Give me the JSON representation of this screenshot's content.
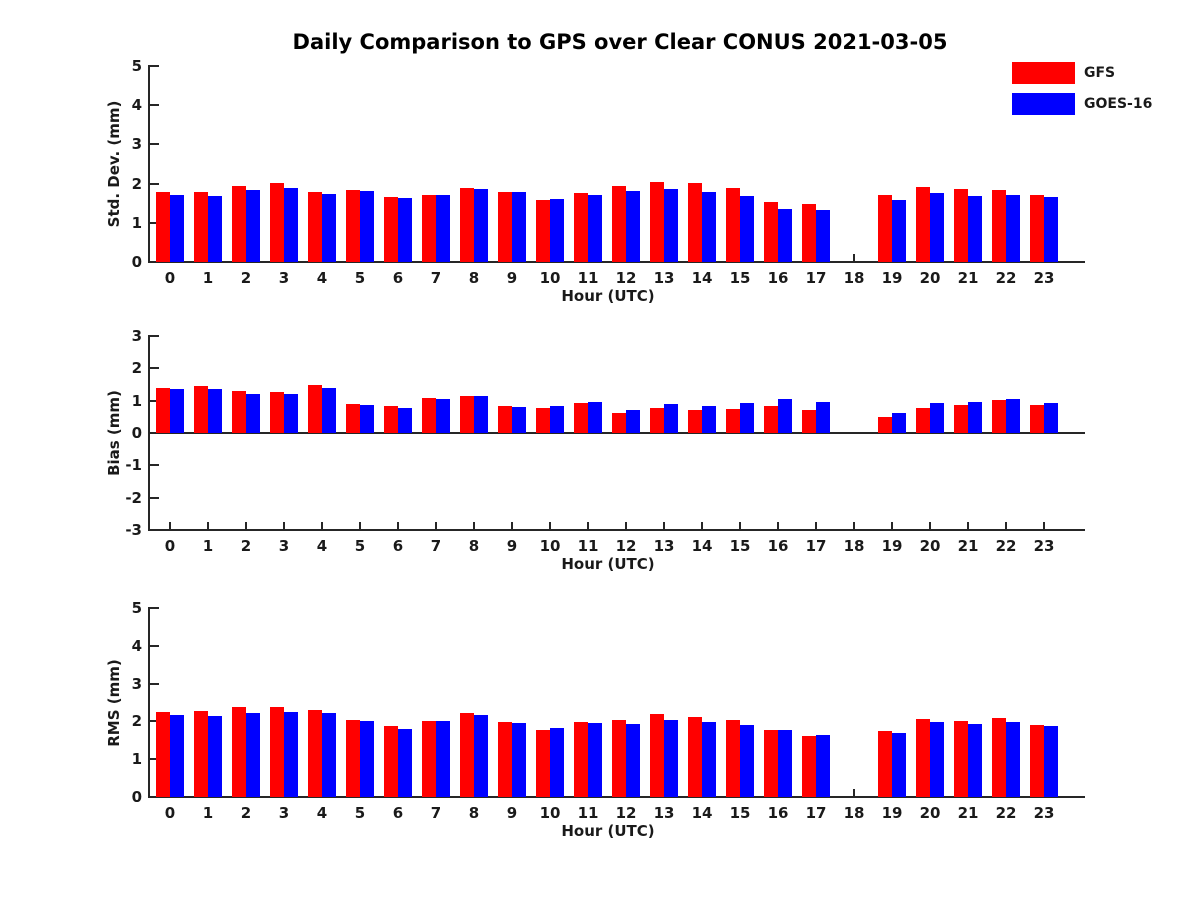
{
  "title": "Daily Comparison to GPS over Clear CONUS 2021-03-05",
  "colors": {
    "gfs": "#ff0000",
    "goes16": "#0000ff",
    "axis": "#262626",
    "text": "#1a1a1a"
  },
  "legend": {
    "position": "top-right",
    "items": [
      {
        "label": "GFS",
        "color": "#ff0000"
      },
      {
        "label": "GOES-16",
        "color": "#0000ff"
      }
    ]
  },
  "chart_data": [
    {
      "type": "bar",
      "title": "",
      "ylabel": "Std. Dev. (mm)",
      "xlabel": "Hour (UTC)",
      "ylim": [
        0,
        5
      ],
      "yticks": [
        0,
        1,
        2,
        3,
        4,
        5
      ],
      "grid": false,
      "categories": [
        "0",
        "1",
        "2",
        "3",
        "4",
        "5",
        "6",
        "7",
        "8",
        "9",
        "10",
        "11",
        "12",
        "13",
        "14",
        "15",
        "16",
        "17",
        "18",
        "19",
        "20",
        "21",
        "22",
        "23"
      ],
      "series": [
        {
          "name": "GFS",
          "color": "#ff0000",
          "values": [
            1.78,
            1.78,
            1.95,
            2.02,
            1.78,
            1.84,
            1.66,
            1.71,
            1.88,
            1.78,
            1.57,
            1.76,
            1.93,
            2.04,
            2.01,
            1.9,
            1.52,
            1.48,
            null,
            1.71,
            1.92,
            1.85,
            1.83,
            1.71
          ]
        },
        {
          "name": "GOES-16",
          "color": "#0000ff",
          "values": [
            1.7,
            1.68,
            1.83,
            1.9,
            1.74,
            1.8,
            1.63,
            1.71,
            1.85,
            1.78,
            1.61,
            1.71,
            1.8,
            1.87,
            1.79,
            1.68,
            1.36,
            1.33,
            null,
            1.57,
            1.77,
            1.68,
            1.72,
            1.67
          ]
        }
      ]
    },
    {
      "type": "bar",
      "title": "",
      "ylabel": "Bias (mm)",
      "xlabel": "Hour (UTC)",
      "ylim": [
        -3,
        3
      ],
      "yticks": [
        -3,
        -2,
        -1,
        0,
        1,
        2,
        3
      ],
      "grid": false,
      "categories": [
        "0",
        "1",
        "2",
        "3",
        "4",
        "5",
        "6",
        "7",
        "8",
        "9",
        "10",
        "11",
        "12",
        "13",
        "14",
        "15",
        "16",
        "17",
        "18",
        "19",
        "20",
        "21",
        "22",
        "23"
      ],
      "series": [
        {
          "name": "GFS",
          "color": "#ff0000",
          "values": [
            1.38,
            1.44,
            1.3,
            1.26,
            1.47,
            0.9,
            0.82,
            1.08,
            1.14,
            0.84,
            0.76,
            0.93,
            0.62,
            0.78,
            0.7,
            0.74,
            0.84,
            0.72,
            null,
            0.5,
            0.78,
            0.87,
            1.02,
            0.87
          ]
        },
        {
          "name": "GOES-16",
          "color": "#0000ff",
          "values": [
            1.36,
            1.36,
            1.22,
            1.2,
            1.4,
            0.86,
            0.78,
            1.05,
            1.15,
            0.81,
            0.82,
            0.96,
            0.72,
            0.9,
            0.83,
            0.92,
            1.06,
            0.97,
            null,
            0.62,
            0.92,
            0.97,
            1.06,
            0.93
          ]
        }
      ]
    },
    {
      "type": "bar",
      "title": "",
      "ylabel": "RMS (mm)",
      "xlabel": "Hour (UTC)",
      "ylim": [
        0,
        5
      ],
      "yticks": [
        0,
        1,
        2,
        3,
        4,
        5
      ],
      "grid": false,
      "categories": [
        "0",
        "1",
        "2",
        "3",
        "4",
        "5",
        "6",
        "7",
        "8",
        "9",
        "10",
        "11",
        "12",
        "13",
        "14",
        "15",
        "16",
        "17",
        "18",
        "19",
        "20",
        "21",
        "22",
        "23"
      ],
      "series": [
        {
          "name": "GFS",
          "color": "#ff0000",
          "values": [
            2.24,
            2.27,
            2.37,
            2.38,
            2.29,
            2.05,
            1.87,
            2.02,
            2.22,
            1.98,
            1.77,
            1.98,
            2.04,
            2.2,
            2.12,
            2.04,
            1.76,
            1.62,
            null,
            1.75,
            2.06,
            2.02,
            2.08,
            1.9
          ]
        },
        {
          "name": "GOES-16",
          "color": "#0000ff",
          "values": [
            2.16,
            2.14,
            2.22,
            2.26,
            2.22,
            2.0,
            1.8,
            2.02,
            2.16,
            1.95,
            1.82,
            1.95,
            1.93,
            2.05,
            1.98,
            1.9,
            1.76,
            1.64,
            null,
            1.7,
            1.99,
            1.92,
            1.98,
            1.88
          ]
        }
      ]
    }
  ]
}
